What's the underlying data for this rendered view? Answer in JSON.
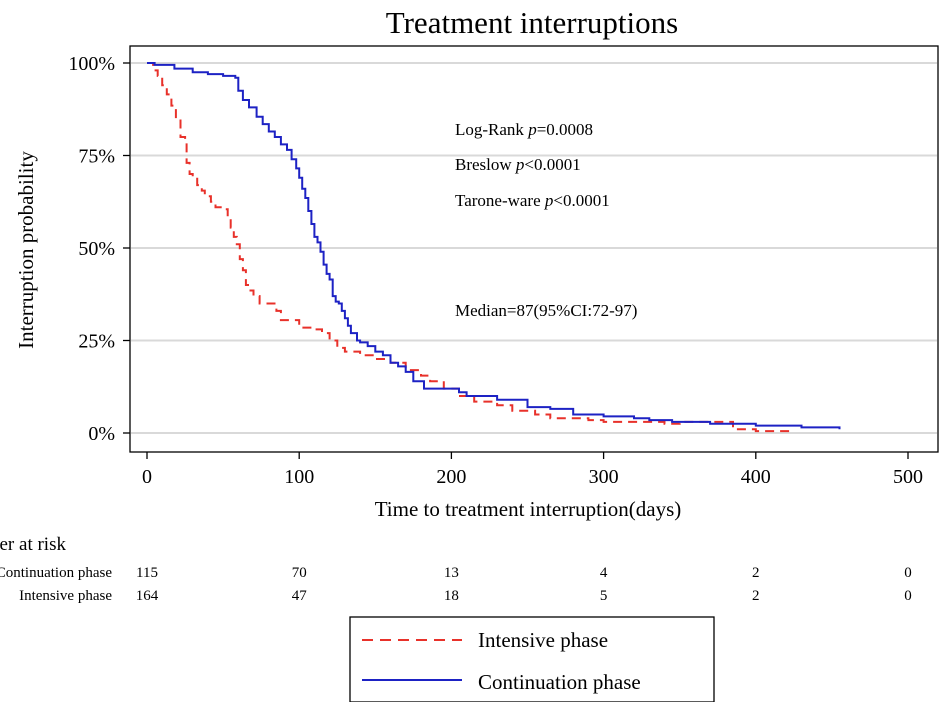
{
  "chart_data": {
    "type": "line",
    "title": "Treatment interruptions",
    "xlabel": "Time to treatment interruption(days)",
    "ylabel": "Interruption probability",
    "xlim": [
      0,
      500
    ],
    "ylim": [
      0,
      1
    ],
    "x_ticks": [
      0,
      100,
      200,
      300,
      400,
      500
    ],
    "x_tick_labels": [
      "0",
      "100",
      "200",
      "300",
      "400",
      "500"
    ],
    "y_ticks": [
      0,
      0.25,
      0.5,
      0.75,
      1.0
    ],
    "y_tick_labels": [
      "0%",
      "25%",
      "50%",
      "75%",
      "100%"
    ],
    "grid": "horizontal",
    "annotations": {
      "logrank_label": "Log-Rank ",
      "logrank_value": "=0.0008",
      "breslow_label": "Breslow ",
      "breslow_value": "<0.0001",
      "tarone_label": "Tarone-ware ",
      "tarone_value": "<0.0001",
      "p_symbol": "p",
      "median": "Median=87(95%CI:72-97)"
    },
    "series": [
      {
        "name": "Intensive phase",
        "color": "#e8312a",
        "dash": "dashed",
        "points": [
          [
            0,
            1.0
          ],
          [
            4,
            0.98
          ],
          [
            7,
            0.965
          ],
          [
            10,
            0.94
          ],
          [
            13,
            0.915
          ],
          [
            16,
            0.885
          ],
          [
            19,
            0.85
          ],
          [
            22,
            0.8
          ],
          [
            25,
            0.78
          ],
          [
            26,
            0.73
          ],
          [
            28,
            0.7
          ],
          [
            30,
            0.69
          ],
          [
            33,
            0.67
          ],
          [
            36,
            0.655
          ],
          [
            38,
            0.64
          ],
          [
            42,
            0.625
          ],
          [
            45,
            0.61
          ],
          [
            50,
            0.605
          ],
          [
            53,
            0.58
          ],
          [
            55,
            0.555
          ],
          [
            57,
            0.53
          ],
          [
            59,
            0.51
          ],
          [
            61,
            0.47
          ],
          [
            63,
            0.44
          ],
          [
            65,
            0.4
          ],
          [
            67,
            0.385
          ],
          [
            70,
            0.37
          ],
          [
            74,
            0.35
          ],
          [
            80,
            0.35
          ],
          [
            85,
            0.33
          ],
          [
            88,
            0.305
          ],
          [
            100,
            0.285
          ],
          [
            110,
            0.28
          ],
          [
            115,
            0.27
          ],
          [
            120,
            0.25
          ],
          [
            125,
            0.23
          ],
          [
            130,
            0.22
          ],
          [
            140,
            0.21
          ],
          [
            150,
            0.2
          ],
          [
            160,
            0.19
          ],
          [
            170,
            0.17
          ],
          [
            180,
            0.155
          ],
          [
            186,
            0.14
          ],
          [
            195,
            0.12
          ],
          [
            205,
            0.1
          ],
          [
            215,
            0.085
          ],
          [
            230,
            0.075
          ],
          [
            240,
            0.06
          ],
          [
            255,
            0.05
          ],
          [
            265,
            0.04
          ],
          [
            280,
            0.04
          ],
          [
            290,
            0.035
          ],
          [
            300,
            0.03
          ],
          [
            320,
            0.03
          ],
          [
            330,
            0.03
          ],
          [
            340,
            0.025
          ],
          [
            350,
            0.03
          ],
          [
            380,
            0.03
          ],
          [
            385,
            0.01
          ],
          [
            400,
            0.005
          ],
          [
            425,
            0.005
          ]
        ]
      },
      {
        "name": "Continuation phase",
        "color": "#1d22c4",
        "dash": "solid",
        "points": [
          [
            0,
            1.0
          ],
          [
            5,
            0.995
          ],
          [
            18,
            0.985
          ],
          [
            30,
            0.975
          ],
          [
            40,
            0.97
          ],
          [
            50,
            0.965
          ],
          [
            58,
            0.96
          ],
          [
            60,
            0.925
          ],
          [
            63,
            0.9
          ],
          [
            67,
            0.88
          ],
          [
            72,
            0.855
          ],
          [
            76,
            0.835
          ],
          [
            80,
            0.815
          ],
          [
            84,
            0.8
          ],
          [
            88,
            0.78
          ],
          [
            92,
            0.765
          ],
          [
            95,
            0.74
          ],
          [
            98,
            0.715
          ],
          [
            100,
            0.69
          ],
          [
            102,
            0.66
          ],
          [
            104,
            0.635
          ],
          [
            106,
            0.6
          ],
          [
            108,
            0.565
          ],
          [
            110,
            0.53
          ],
          [
            112,
            0.515
          ],
          [
            114,
            0.49
          ],
          [
            116,
            0.455
          ],
          [
            118,
            0.43
          ],
          [
            120,
            0.415
          ],
          [
            122,
            0.37
          ],
          [
            124,
            0.355
          ],
          [
            126,
            0.35
          ],
          [
            128,
            0.33
          ],
          [
            130,
            0.31
          ],
          [
            132,
            0.29
          ],
          [
            134,
            0.27
          ],
          [
            138,
            0.25
          ],
          [
            140,
            0.245
          ],
          [
            145,
            0.235
          ],
          [
            150,
            0.22
          ],
          [
            155,
            0.21
          ],
          [
            160,
            0.19
          ],
          [
            165,
            0.18
          ],
          [
            170,
            0.165
          ],
          [
            175,
            0.14
          ],
          [
            182,
            0.12
          ],
          [
            195,
            0.12
          ],
          [
            205,
            0.11
          ],
          [
            210,
            0.1
          ],
          [
            230,
            0.09
          ],
          [
            250,
            0.07
          ],
          [
            265,
            0.065
          ],
          [
            280,
            0.05
          ],
          [
            300,
            0.045
          ],
          [
            320,
            0.04
          ],
          [
            330,
            0.035
          ],
          [
            345,
            0.03
          ],
          [
            370,
            0.025
          ],
          [
            400,
            0.02
          ],
          [
            420,
            0.02
          ],
          [
            430,
            0.015
          ],
          [
            455,
            0.01
          ]
        ]
      }
    ],
    "risk_table": {
      "title": "Number at risk",
      "rows": [
        {
          "label": "Continuation phase",
          "values": [
            "115",
            "70",
            "13",
            "4",
            "2",
            "0"
          ]
        },
        {
          "label": "Intensive phase",
          "values": [
            "164",
            "47",
            "18",
            "5",
            "2",
            "0"
          ]
        }
      ]
    },
    "legend": {
      "position": "bottom-center",
      "items": [
        "Intensive phase",
        "Continuation phase"
      ]
    }
  }
}
